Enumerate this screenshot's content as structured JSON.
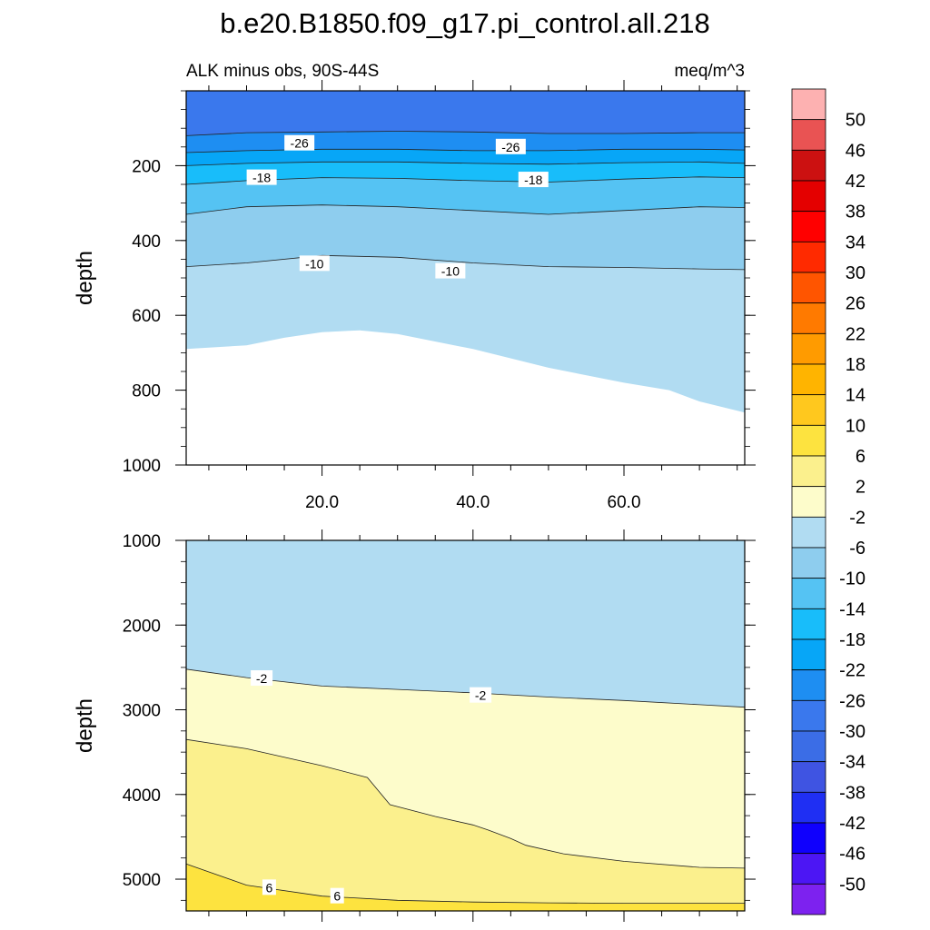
{
  "title": "b.e20.B1850.f09_g17.pi_control.all.218",
  "subtitle_left": "ALK minus obs, 90S-44S",
  "subtitle_right": "meq/m^3",
  "chart_data": [
    {
      "type": "contour",
      "panel": "upper",
      "ylabel": "depth",
      "xlim": [
        2,
        76
      ],
      "ylim": [
        1000,
        0
      ],
      "xticks": [
        20,
        40,
        60
      ],
      "xtick_labels": [
        "20.0",
        "40.0",
        "60.0"
      ],
      "yticks": [
        200,
        400,
        600,
        800,
        1000
      ],
      "ytick_labels": [
        "200",
        "400",
        "600",
        "800",
        "1000"
      ],
      "contour_levels": [
        -30,
        -26,
        -22,
        -18,
        -14,
        -10,
        -6
      ],
      "regions": [
        {
          "value_range": "-30 to -26",
          "color": "#3a78ed",
          "lower_boundary": [
            [
              2,
              120
            ],
            [
              10,
              112
            ],
            [
              20,
              110
            ],
            [
              30,
              108
            ],
            [
              40,
              110
            ],
            [
              50,
              114
            ],
            [
              60,
              114
            ],
            [
              70,
              112
            ],
            [
              76,
              112
            ]
          ]
        },
        {
          "value_range": "-26 to -22",
          "color": "#1e8ef2",
          "lower_boundary": [
            [
              2,
              165
            ],
            [
              10,
              160
            ],
            [
              20,
              156
            ],
            [
              30,
              156
            ],
            [
              40,
              160
            ],
            [
              50,
              160
            ],
            [
              60,
              156
            ],
            [
              70,
              156
            ],
            [
              76,
              158
            ]
          ]
        },
        {
          "value_range": "-22 to -18",
          "color": "#07a6f7",
          "lower_boundary": [
            [
              2,
              200
            ],
            [
              10,
              194
            ],
            [
              20,
              190
            ],
            [
              30,
              190
            ],
            [
              40,
              194
            ],
            [
              50,
              196
            ],
            [
              60,
              192
            ],
            [
              70,
              190
            ],
            [
              76,
              194
            ]
          ]
        },
        {
          "value_range": "-18 to -14",
          "color": "#18bdfa",
          "lower_boundary": [
            [
              2,
              250
            ],
            [
              10,
              240
            ],
            [
              20,
              232
            ],
            [
              30,
              234
            ],
            [
              40,
              240
            ],
            [
              50,
              244
            ],
            [
              60,
              236
            ],
            [
              70,
              230
            ],
            [
              76,
              232
            ]
          ]
        },
        {
          "value_range": "-14 to -10",
          "color": "#55c3f3",
          "lower_boundary": [
            [
              2,
              330
            ],
            [
              10,
              310
            ],
            [
              20,
              305
            ],
            [
              30,
              310
            ],
            [
              40,
              320
            ],
            [
              50,
              330
            ],
            [
              60,
              320
            ],
            [
              70,
              310
            ],
            [
              76,
              312
            ]
          ]
        },
        {
          "value_range": "-10 to -6",
          "color": "#8ecdee",
          "lower_boundary": [
            [
              2,
              470
            ],
            [
              10,
              460
            ],
            [
              20,
              440
            ],
            [
              30,
              445
            ],
            [
              40,
              460
            ],
            [
              50,
              470
            ],
            [
              60,
              472
            ],
            [
              70,
              476
            ],
            [
              76,
              478
            ]
          ]
        },
        {
          "value_range": "-6 to -2",
          "color": "#b1dcf2",
          "lower_boundary": [
            [
              2,
              690
            ],
            [
              10,
              680
            ],
            [
              15,
              660
            ],
            [
              20,
              645
            ],
            [
              25,
              640
            ],
            [
              30,
              650
            ],
            [
              40,
              690
            ],
            [
              50,
              740
            ],
            [
              60,
              780
            ],
            [
              66,
              800
            ],
            [
              70,
              830
            ],
            [
              76,
              860
            ]
          ]
        }
      ],
      "contour_labels": [
        {
          "text": "-26",
          "x": 17,
          "y": 140
        },
        {
          "text": "-26",
          "x": 45,
          "y": 150
        },
        {
          "text": "-18",
          "x": 12,
          "y": 232
        },
        {
          "text": "-18",
          "x": 48,
          "y": 238
        },
        {
          "text": "-10",
          "x": 19,
          "y": 462
        },
        {
          "text": "-10",
          "x": 37,
          "y": 482
        }
      ]
    },
    {
      "type": "contour",
      "panel": "lower",
      "ylabel": "depth",
      "xlim": [
        2,
        76
      ],
      "ylim": [
        5375,
        1000
      ],
      "yticks": [
        1000,
        2000,
        3000,
        4000,
        5000
      ],
      "ytick_labels": [
        "1000",
        "2000",
        "3000",
        "4000",
        "5000"
      ],
      "contour_levels": [
        -2,
        2,
        6
      ],
      "regions": [
        {
          "value_range": "-6 to -2",
          "color": "#b1dcf2",
          "lower_boundary": [
            [
              2,
              2520
            ],
            [
              10,
              2620
            ],
            [
              20,
              2720
            ],
            [
              30,
              2760
            ],
            [
              40,
              2800
            ],
            [
              50,
              2850
            ],
            [
              60,
              2890
            ],
            [
              70,
              2940
            ],
            [
              76,
              2970
            ]
          ]
        },
        {
          "value_range": "-2 to 2",
          "color": "#fdfccb",
          "lower_boundary": [
            [
              2,
              3350
            ],
            [
              10,
              3460
            ],
            [
              20,
              3660
            ],
            [
              26,
              3800
            ],
            [
              29,
              4120
            ],
            [
              35,
              4260
            ],
            [
              40,
              4360
            ],
            [
              42,
              4420
            ],
            [
              45,
              4520
            ],
            [
              47,
              4600
            ],
            [
              52,
              4700
            ],
            [
              60,
              4790
            ],
            [
              70,
              4860
            ],
            [
              76,
              4870
            ]
          ]
        },
        {
          "value_range": "2 to 6",
          "color": "#fbf08d",
          "lower_boundary": [
            [
              2,
              4820
            ],
            [
              10,
              5070
            ],
            [
              20,
              5200
            ],
            [
              30,
              5250
            ],
            [
              40,
              5270
            ],
            [
              50,
              5280
            ],
            [
              60,
              5285
            ],
            [
              76,
              5285
            ]
          ]
        },
        {
          "value_range": "6 to 10",
          "color": "#fde33f",
          "lower_boundary": [
            [
              2,
              5375
            ],
            [
              76,
              5375
            ]
          ]
        }
      ],
      "contour_labels": [
        {
          "text": "-2",
          "x": 12,
          "y": 2630
        },
        {
          "text": "-2",
          "x": 41,
          "y": 2830
        },
        {
          "text": "6",
          "x": 13,
          "y": 5100
        },
        {
          "text": "6",
          "x": 22,
          "y": 5200
        }
      ]
    },
    {
      "type": "colorbar",
      "labels": [
        "50",
        "46",
        "42",
        "38",
        "34",
        "30",
        "26",
        "22",
        "18",
        "14",
        "10",
        "6",
        "2",
        "-2",
        "-6",
        "-10",
        "-14",
        "-18",
        "-22",
        "-26",
        "-30",
        "-34",
        "-38",
        "-42",
        "-46",
        "-50"
      ],
      "colors": [
        "#fdb1b1",
        "#e95353",
        "#cc1111",
        "#e40000",
        "#ff0000",
        "#ff2a00",
        "#ff5500",
        "#ff7a00",
        "#ff9b00",
        "#ffb400",
        "#ffc81e",
        "#fde33f",
        "#fbf08d",
        "#fdfccb",
        "#b1dcf2",
        "#8ecdee",
        "#55c3f3",
        "#18bdfa",
        "#07a6f7",
        "#1e8ef2",
        "#3a78ed",
        "#3b6de6",
        "#3f54e2",
        "#1f2ff3",
        "#0f00fd",
        "#4c16f4",
        "#7d22ef"
      ]
    }
  ]
}
